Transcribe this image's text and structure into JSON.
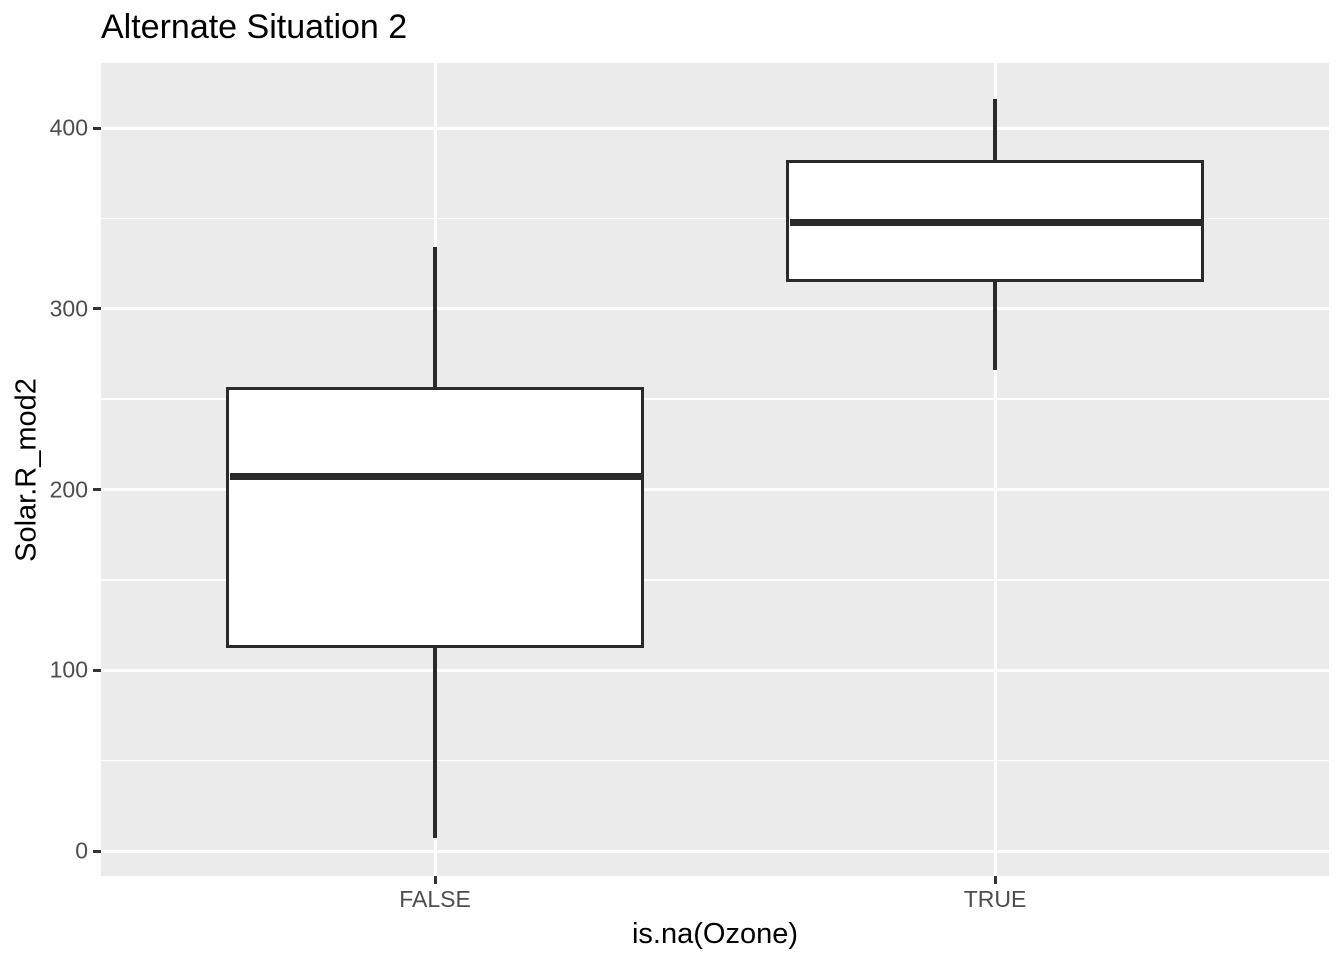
{
  "title": "Alternate Situation 2",
  "chart_data": {
    "type": "boxplot",
    "title": "Alternate Situation 2",
    "xlabel": "is.na(Ozone)",
    "ylabel": "Solar.R_mod2",
    "categories": [
      "FALSE",
      "TRUE"
    ],
    "series": [
      {
        "category": "FALSE",
        "min": 7,
        "q1": 113.5,
        "median": 207,
        "q3": 255.5,
        "max": 334
      },
      {
        "category": "TRUE",
        "min": 266,
        "q1": 315.5,
        "median": 347.5,
        "q3": 381.5,
        "max": 416
      }
    ],
    "y_ticks": [
      0,
      100,
      200,
      300,
      400
    ],
    "y_minor_ticks": [
      50,
      150,
      250,
      350
    ],
    "ylim": [
      -13.5,
      436.5
    ],
    "grid": true,
    "legend_position": "none",
    "theme": "ggplot2-gray"
  },
  "colors": {
    "background": "#FFFFFF",
    "panel_background": "#EBEBEB",
    "gridline": "#FFFFFF",
    "box_stroke": "#2A2A2A",
    "box_fill": "#FFFFFF",
    "tick_mark": "#333333",
    "tick_label": "#4D4D4D",
    "text": "#000000"
  }
}
